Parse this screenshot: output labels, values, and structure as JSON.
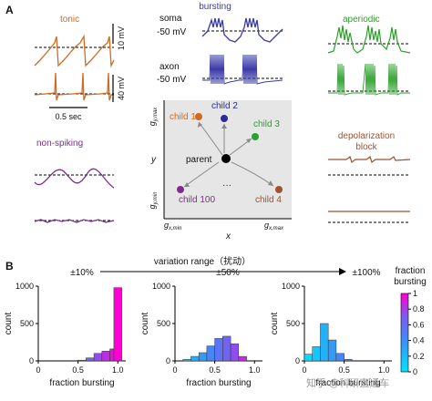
{
  "panel_a": {
    "letter": "A",
    "tonic": {
      "title": "tonic",
      "scale_top": "10 mV",
      "scale_bottom": "40 mV",
      "scale_time": "0.5 sec",
      "color": "#d2691e"
    },
    "nonspiking": {
      "title": "non-spiking",
      "color": "#7b2d8e"
    },
    "bursting": {
      "title": "bursting",
      "soma_label": "soma",
      "axon_label": "axon",
      "soma_mv": "-50 mV",
      "axon_mv": "-50 mV",
      "color": "#3a3aa8"
    },
    "aperiodic": {
      "title": "aperiodic",
      "color": "#2ca02c"
    },
    "depol": {
      "title_line1": "depolarization",
      "title_line2": "block",
      "color": "#a0522d"
    },
    "param_space": {
      "y_axis": "y",
      "x_axis": "x",
      "gy_max": "g",
      "gy_max_sub": "y,max",
      "gy_min": "g",
      "gy_min_sub": "y,min",
      "gx_min": "g",
      "gx_min_sub": "x,min",
      "gx_max": "g",
      "gx_max_sub": "x,max",
      "parent": "parent",
      "ellipsis": "···",
      "children": [
        {
          "label": "child 1",
          "color": "#d2691e"
        },
        {
          "label": "child 2",
          "color": "#2b2b9a"
        },
        {
          "label": "child 3",
          "color": "#2ca02c"
        },
        {
          "label": "child 4",
          "color": "#a0522d"
        },
        {
          "label": "child 100",
          "color": "#7b2d8e"
        }
      ]
    }
  },
  "panel_b": {
    "letter": "B",
    "range_title": "variation range（扰动）",
    "ranges": [
      "±10%",
      "±50%",
      "±100%"
    ],
    "colorbar": {
      "title_line1": "fraction",
      "title_line2": "bursting",
      "ticks": [
        "1",
        "0.8",
        "0.6",
        "0.4",
        "0.2",
        "0"
      ]
    },
    "watermark": "知乎 @科研直通车"
  },
  "chart_data": [
    {
      "type": "bar",
      "title": "±10%",
      "xlabel": "fraction bursting",
      "ylabel": "count",
      "xlim": [
        0,
        1.1
      ],
      "ylim": [
        0,
        1000
      ],
      "xticks": [
        "0",
        "0.5",
        "1.0"
      ],
      "yticks": [
        "0",
        "500",
        "1000"
      ],
      "bins": [
        0.55,
        0.65,
        0.75,
        0.85,
        0.95,
        1.0
      ],
      "values": [
        10,
        40,
        100,
        130,
        160,
        980
      ]
    },
    {
      "type": "bar",
      "title": "±50%",
      "xlabel": "fraction bursting",
      "ylabel": "count",
      "xlim": [
        0,
        1.1
      ],
      "ylim": [
        0,
        1000
      ],
      "xticks": [
        "0",
        "0.5",
        "1.0"
      ],
      "yticks": [
        "0",
        "500",
        "1000"
      ],
      "bins": [
        0.15,
        0.25,
        0.35,
        0.45,
        0.55,
        0.65,
        0.75,
        0.85
      ],
      "values": [
        20,
        60,
        110,
        200,
        300,
        330,
        230,
        60
      ]
    },
    {
      "type": "bar",
      "title": "±100%",
      "xlabel": "fraction bursting",
      "ylabel": "count",
      "xlim": [
        0,
        1.1
      ],
      "ylim": [
        0,
        1000
      ],
      "xticks": [
        "0",
        "0.5",
        "1.0"
      ],
      "yticks": [
        "0",
        "500",
        "1000"
      ],
      "bins": [
        0.05,
        0.15,
        0.25,
        0.35,
        0.45,
        0.55
      ],
      "values": [
        90,
        190,
        500,
        280,
        100,
        20
      ]
    }
  ]
}
